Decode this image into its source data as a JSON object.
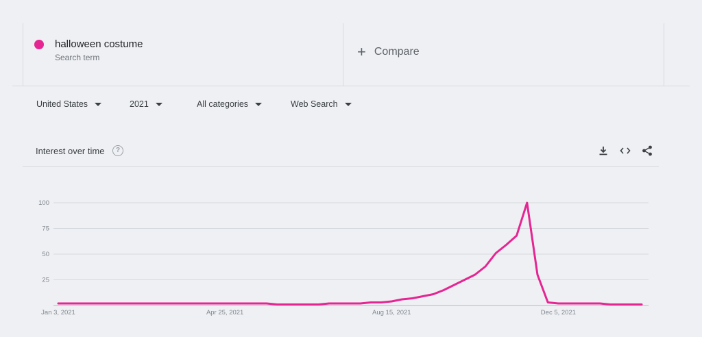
{
  "search_term": {
    "name": "halloween costume",
    "subtitle": "Search term",
    "color": "#e52592"
  },
  "compare": {
    "icon": "plus-icon",
    "label": "Compare"
  },
  "filters": {
    "region": "United States",
    "period": "2021",
    "category": "All categories",
    "property": "Web Search"
  },
  "panel": {
    "title": "Interest over time",
    "help_icon_glyph": "?",
    "tools": [
      "download-icon",
      "embed-icon",
      "share-icon"
    ]
  },
  "chart_data": {
    "type": "line",
    "title": "",
    "xlabel": "",
    "ylabel": "",
    "ylim": [
      0,
      100
    ],
    "yticks": [
      25,
      50,
      75,
      100
    ],
    "x_tick_labels": [
      "Jan 3, 2021",
      "Apr 25, 2021",
      "Aug 15, 2021",
      "Dec 5, 2021"
    ],
    "x_tick_indices": [
      0,
      16,
      32,
      48
    ],
    "grid": true,
    "series": [
      {
        "color": "#e52592",
        "values": [
          2,
          2,
          2,
          2,
          2,
          2,
          2,
          2,
          2,
          2,
          2,
          2,
          2,
          2,
          2,
          2,
          2,
          2,
          2,
          2,
          2,
          1,
          1,
          1,
          1,
          1,
          2,
          2,
          2,
          2,
          3,
          3,
          4,
          6,
          7,
          9,
          11,
          15,
          20,
          25,
          30,
          38,
          51,
          59,
          68,
          100,
          30,
          3,
          2,
          2,
          2,
          2,
          2,
          1,
          1,
          1,
          1
        ]
      }
    ]
  }
}
